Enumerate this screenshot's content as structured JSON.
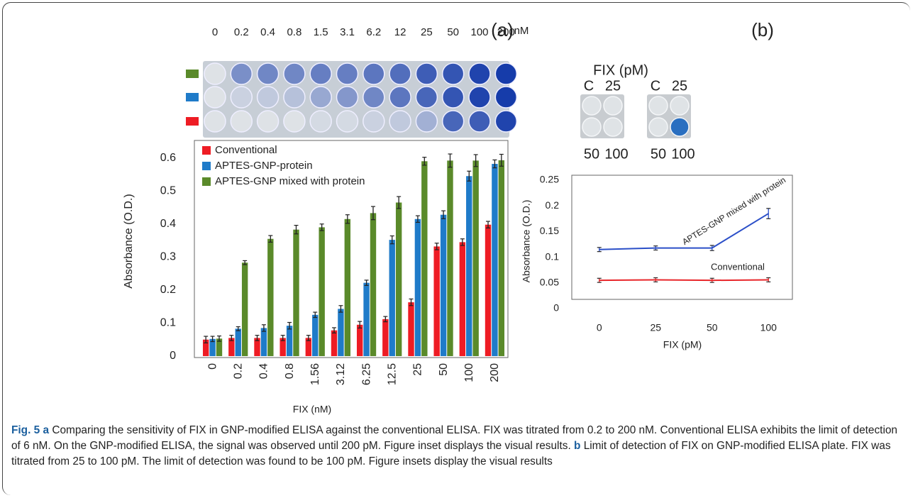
{
  "panel_labels": [
    "(a)",
    "(b)"
  ],
  "inset_a": {
    "concentrations": [
      "0",
      "0.2",
      "0.4",
      "0.8",
      "1.5",
      "3.1",
      "6.2",
      "12",
      "25",
      "50",
      "100",
      "200"
    ],
    "unit": "nM"
  },
  "inset_b": {
    "title": "FIX (pM)",
    "top_labels": [
      "C",
      "25"
    ],
    "bottom_labels": [
      "50",
      "100"
    ]
  },
  "chart_data": [
    {
      "type": "bar",
      "x_label": "FIX  (nM)",
      "y_label": "Absorbance (O.D.)",
      "categories": [
        "0",
        "0.2",
        "0.4",
        "0.8",
        "1.56",
        "3.12",
        "6.25",
        "12.5",
        "25",
        "50",
        "100",
        "200"
      ],
      "series": [
        {
          "name": "Conventional",
          "color": "#ee1c24",
          "values": [
            0.05,
            0.055,
            0.055,
            0.055,
            0.055,
            0.078,
            0.095,
            0.112,
            0.163,
            0.332,
            0.345,
            0.398
          ],
          "errors": [
            0.01,
            0.008,
            0.008,
            0.008,
            0.008,
            0.008,
            0.01,
            0.008,
            0.01,
            0.01,
            0.01,
            0.01
          ]
        },
        {
          "name": "APTES-GNP-protein",
          "color": "#1f7bc9",
          "values": [
            0.052,
            0.083,
            0.085,
            0.092,
            0.125,
            0.143,
            0.222,
            0.352,
            0.415,
            0.428,
            0.545,
            0.582
          ],
          "errors": [
            0.008,
            0.006,
            0.01,
            0.01,
            0.008,
            0.01,
            0.008,
            0.012,
            0.01,
            0.012,
            0.015,
            0.012
          ]
        },
        {
          "name": "APTES-GNP mixed with protein",
          "color": "#5a8a2a",
          "values": [
            0.053,
            0.283,
            0.355,
            0.383,
            0.39,
            0.415,
            0.433,
            0.465,
            0.59,
            0.592,
            0.592,
            0.593
          ],
          "errors": [
            0.008,
            0.006,
            0.01,
            0.013,
            0.01,
            0.013,
            0.02,
            0.018,
            0.012,
            0.02,
            0.018,
            0.018
          ]
        }
      ],
      "ylim": [
        0,
        0.64
      ],
      "yticks": [
        0,
        0.1,
        0.2,
        0.3,
        0.4,
        0.5,
        0.6
      ],
      "legend": "top-left"
    },
    {
      "type": "line",
      "x_label": "FIX (pM)",
      "y_label": "Absorbance (O.D.)",
      "categories": [
        "0",
        "25",
        "50",
        "100"
      ],
      "series": [
        {
          "name": "APTES-GNP mixed with protein",
          "color": "#2b4fc8",
          "values": [
            0.115,
            0.118,
            0.118,
            0.185
          ],
          "errors": [
            0.004,
            0.004,
            0.005,
            0.01
          ]
        },
        {
          "name": "Conventional",
          "color": "#e8262a",
          "values": [
            0.055,
            0.056,
            0.055,
            0.056
          ],
          "errors": [
            0.004,
            0.004,
            0.004,
            0.004
          ]
        }
      ],
      "ylim": [
        0,
        0.25
      ],
      "yticks": [
        0,
        0.05,
        0.1,
        0.15,
        0.2,
        0.25
      ]
    }
  ],
  "caption": {
    "label": "Fig. 5",
    "a_label": "a",
    "a_text": "Comparing the sensitivity of FIX in GNP-modified ELISA against the conventional ELISA. FIX was titrated from 0.2 to 200 nM. Conventional ELISA exhibits the limit of detection of 6 nM. On the GNP-modified ELISA, the signal was observed until 200 pM. Figure inset displays the visual results.",
    "b_label": "b",
    "b_text": "Limit of detection of FIX on GNP-modified ELISA plate. FIX was titrated from 25 to 100 pM. The limit of detection was found to be 100 pM. Figure insets display the visual results"
  }
}
